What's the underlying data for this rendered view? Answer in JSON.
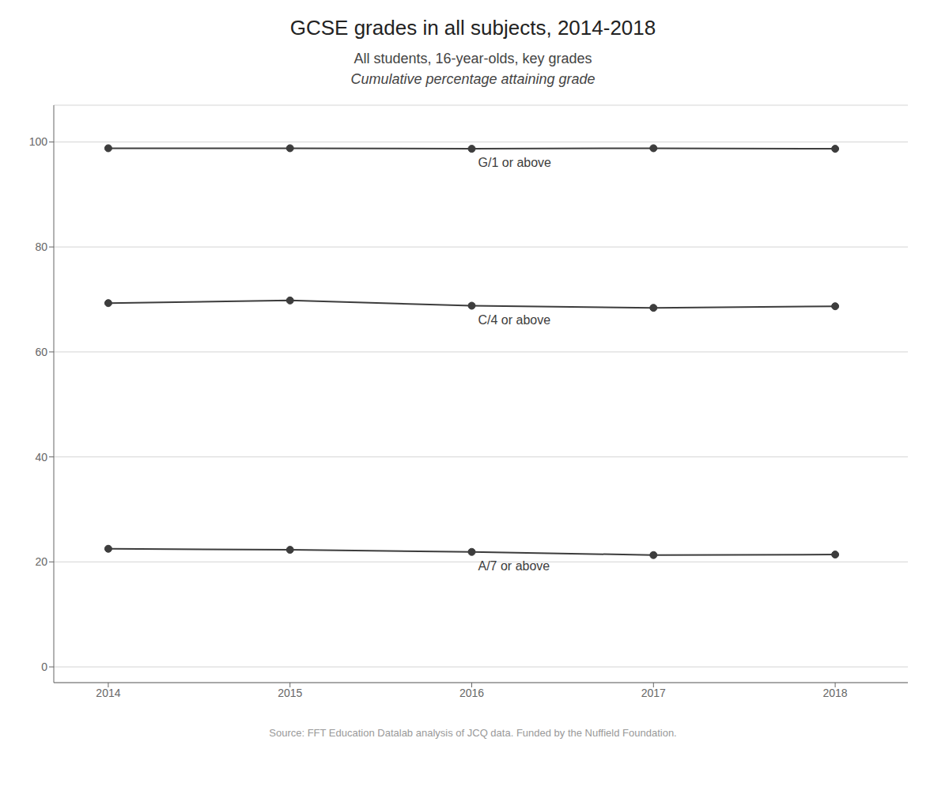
{
  "chart_data": {
    "type": "line",
    "title": "GCSE grades in all subjects, 2014-2018",
    "subtitle": [
      "All students, 16-year-olds, key grades",
      "Cumulative percentage attaining grade"
    ],
    "annotations": [
      "Source: FFT Education Datalab analysis of JCQ data. Funded by the Nuffield Foundation."
    ],
    "x": [
      2014,
      2015,
      2016,
      2017,
      2018
    ],
    "series": [
      {
        "name": "G/1 or above",
        "values": [
          98.8,
          98.8,
          98.7,
          98.8,
          98.7
        ]
      },
      {
        "name": "C/4 or above",
        "values": [
          69.3,
          69.8,
          68.8,
          68.4,
          68.7
        ]
      },
      {
        "name": "A/7 or above",
        "values": [
          22.5,
          22.3,
          21.9,
          21.3,
          21.4
        ]
      }
    ],
    "color": "#3d3d3d",
    "marker": "o",
    "xlim": [
      2013.7,
      2018.4
    ],
    "xticks": [
      2014,
      2015,
      2016,
      2017,
      2018
    ],
    "ylim": [
      -3,
      107
    ],
    "yticks": [
      0,
      20,
      40,
      60,
      80,
      100
    ],
    "grid": true
  }
}
